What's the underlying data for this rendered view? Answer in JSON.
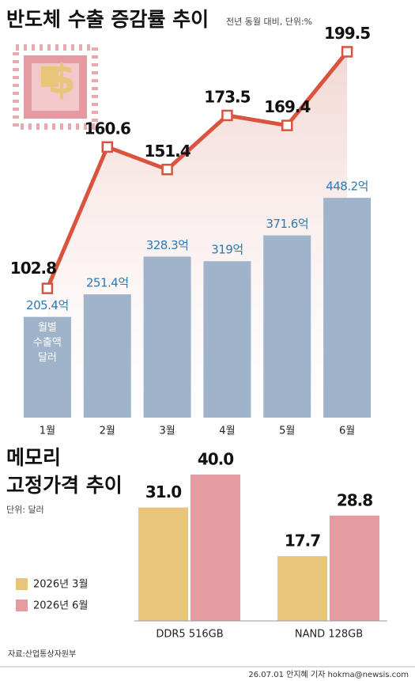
{
  "chart_data": [
    {
      "type": "bar-line",
      "title": "반도체 수출 증감률 추이",
      "subtitle": "전년 동월 대비, 단위:%",
      "categories": [
        "1월",
        "2월",
        "3월",
        "4월",
        "5월",
        "6월"
      ],
      "series": [
        {
          "type": "bar",
          "color": "#9fb3cb",
          "values": [
            205.4,
            251.4,
            328.3,
            319,
            371.6,
            448.2
          ],
          "value_labels": [
            "205.4억",
            "251.4억",
            "328.3억",
            "319억",
            "371.6억",
            "448.2억"
          ],
          "label_lines": [
            "월별",
            "수출액",
            "달러"
          ]
        },
        {
          "type": "line",
          "axis": "y2",
          "color": "#d9533f",
          "values": [
            102.8,
            160.6,
            151.4,
            173.5,
            169.4,
            199.5
          ]
        }
      ],
      "ylim": [
        0,
        500
      ],
      "y2lim": [
        50,
        210
      ]
    },
    {
      "type": "bar",
      "title": [
        "메모리",
        "고정가격 추이"
      ],
      "subtitle": "단위: 달러",
      "categories": [
        "DDR5 516GB",
        "NAND 128GB"
      ],
      "series": [
        {
          "name": "2026년 3월",
          "color": "#e8c57b",
          "values": [
            31.0,
            17.7
          ],
          "value_labels": [
            "31.0",
            "17.7"
          ]
        },
        {
          "name": "2026년 6월",
          "color": "#e49ca1",
          "values": [
            40.0,
            28.8
          ],
          "value_labels": [
            "40.0",
            "28.8"
          ]
        }
      ],
      "ylim": [
        0,
        40
      ]
    }
  ],
  "source": "자료:산업통상자원부",
  "credit": "26.07.01 안지혜 기자 hokma@newsis.com"
}
